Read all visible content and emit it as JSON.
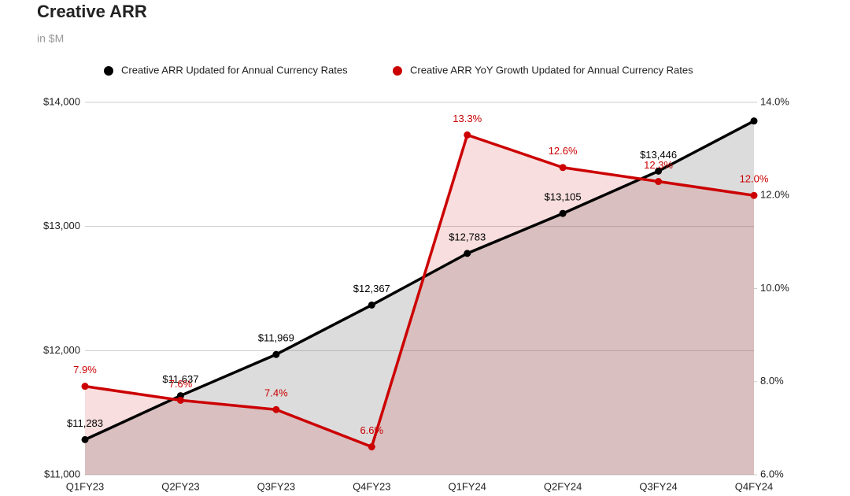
{
  "chart_data": {
    "type": "line",
    "title": "Creative ARR",
    "subtitle": "in $M",
    "categories": [
      "Q1FY23",
      "Q2FY23",
      "Q3FY23",
      "Q4FY23",
      "Q1FY24",
      "Q2FY24",
      "Q3FY24",
      "Q4FY24"
    ],
    "series": [
      {
        "name": "Creative ARR Updated for Annual Currency Rates",
        "color": "#000000",
        "axis": "y",
        "values": [
          11283,
          11637,
          11969,
          12367,
          12783,
          13105,
          13446,
          13850
        ],
        "value_labels": [
          "$11,283",
          "$11,637",
          "$11,969",
          "$12,367",
          "$12,783",
          "$13,105",
          "$13,446",
          null
        ]
      },
      {
        "name": "Creative ARR YoY Growth Updated for Annual Currency Rates",
        "color": "#cc0000",
        "axis": "y2",
        "values": [
          7.9,
          7.6,
          7.4,
          6.6,
          13.3,
          12.6,
          12.3,
          12.0
        ],
        "value_labels": [
          "7.9%",
          "7.6%",
          "7.4%",
          "6.6%",
          "13.3%",
          "12.6%",
          "12.3%",
          "12.0%"
        ]
      }
    ],
    "ylim": [
      11000,
      14000
    ],
    "yticks": [
      {
        "value": 11000,
        "label": "$11,000"
      },
      {
        "value": 12000,
        "label": "$12,000"
      },
      {
        "value": 13000,
        "label": "$13,000"
      },
      {
        "value": 14000,
        "label": "$14,000"
      }
    ],
    "y2lim": [
      6,
      14
    ],
    "y2ticks": [
      {
        "value": 6,
        "label": "6.0%"
      },
      {
        "value": 8,
        "label": "8.0%"
      },
      {
        "value": 10,
        "label": "10.0%"
      },
      {
        "value": 12,
        "label": "12.0%"
      },
      {
        "value": 14,
        "label": "14.0%"
      }
    ],
    "grid": true,
    "legend": "top"
  }
}
